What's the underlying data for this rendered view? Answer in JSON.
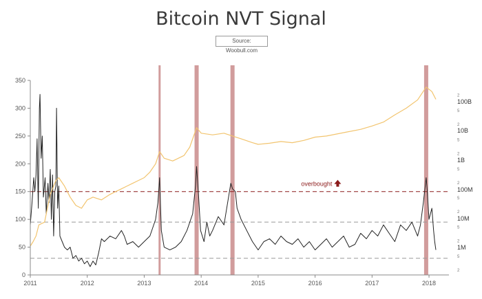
{
  "header": {
    "title": "Bitcoin NVT Signal",
    "source": "Source: Woobull.com"
  },
  "chart_data": {
    "type": "line",
    "title": "Bitcoin NVT Signal",
    "xlabel": "",
    "ylabel": "",
    "xlim": [
      2011.0,
      2018.35
    ],
    "ylim": [
      0,
      350
    ],
    "x_ticks": [
      "2011",
      "2012",
      "2013",
      "2014",
      "2015",
      "2016",
      "2017",
      "2018"
    ],
    "y_ticks": [
      0,
      50,
      100,
      150,
      200,
      250,
      300,
      350
    ],
    "right_axis": {
      "scale": "log",
      "major_labels": [
        "1M",
        "10M",
        "100M",
        "1B",
        "10B",
        "100B"
      ],
      "minor_labels": [
        "2",
        "5"
      ]
    },
    "grid": false,
    "reference_lines": [
      {
        "y": 150,
        "color": "#8b1a1a",
        "label": "overbought"
      },
      {
        "y": 95,
        "color": "#999999"
      },
      {
        "y": 30,
        "color": "#999999"
      }
    ],
    "annotations": [
      {
        "text": "overbought",
        "x": 2016.3,
        "y": 160,
        "marker": "up-arrow"
      }
    ],
    "highlight_bands": [
      {
        "x": 2013.27
      },
      {
        "x": 2013.92
      },
      {
        "x": 2014.55
      },
      {
        "x": 2017.95
      }
    ],
    "series": [
      {
        "name": "",
        "color": "#222222",
        "points": [
          [
            2011.0,
            90
          ],
          [
            2011.03,
            130
          ],
          [
            2011.06,
            175
          ],
          [
            2011.08,
            150
          ],
          [
            2011.1,
            180
          ],
          [
            2011.12,
            245
          ],
          [
            2011.14,
            120
          ],
          [
            2011.16,
            300
          ],
          [
            2011.17,
            325
          ],
          [
            2011.19,
            210
          ],
          [
            2011.21,
            250
          ],
          [
            2011.23,
            140
          ],
          [
            2011.26,
            175
          ],
          [
            2011.28,
            110
          ],
          [
            2011.31,
            165
          ],
          [
            2011.33,
            130
          ],
          [
            2011.35,
            190
          ],
          [
            2011.37,
            100
          ],
          [
            2011.39,
            180
          ],
          [
            2011.41,
            70
          ],
          [
            2011.43,
            150
          ],
          [
            2011.45,
            160
          ],
          [
            2011.46,
            300
          ],
          [
            2011.48,
            120
          ],
          [
            2011.5,
            160
          ],
          [
            2011.52,
            70
          ],
          [
            2011.56,
            60
          ],
          [
            2011.6,
            50
          ],
          [
            2011.65,
            45
          ],
          [
            2011.7,
            50
          ],
          [
            2011.75,
            30
          ],
          [
            2011.8,
            35
          ],
          [
            2011.85,
            25
          ],
          [
            2011.9,
            30
          ],
          [
            2011.95,
            20
          ],
          [
            2012.0,
            25
          ],
          [
            2012.05,
            15
          ],
          [
            2012.1,
            25
          ],
          [
            2012.15,
            18
          ],
          [
            2012.2,
            40
          ],
          [
            2012.25,
            65
          ],
          [
            2012.3,
            60
          ],
          [
            2012.4,
            70
          ],
          [
            2012.5,
            65
          ],
          [
            2012.6,
            80
          ],
          [
            2012.65,
            70
          ],
          [
            2012.7,
            55
          ],
          [
            2012.8,
            60
          ],
          [
            2012.9,
            50
          ],
          [
            2013.0,
            60
          ],
          [
            2013.1,
            70
          ],
          [
            2013.2,
            100
          ],
          [
            2013.24,
            130
          ],
          [
            2013.27,
            175
          ],
          [
            2013.3,
            80
          ],
          [
            2013.35,
            50
          ],
          [
            2013.45,
            45
          ],
          [
            2013.55,
            50
          ],
          [
            2013.65,
            60
          ],
          [
            2013.75,
            80
          ],
          [
            2013.85,
            110
          ],
          [
            2013.9,
            160
          ],
          [
            2013.92,
            195
          ],
          [
            2013.95,
            150
          ],
          [
            2013.99,
            80
          ],
          [
            2014.05,
            60
          ],
          [
            2014.1,
            95
          ],
          [
            2014.15,
            70
          ],
          [
            2014.2,
            80
          ],
          [
            2014.3,
            105
          ],
          [
            2014.4,
            90
          ],
          [
            2014.48,
            140
          ],
          [
            2014.52,
            165
          ],
          [
            2014.55,
            155
          ],
          [
            2014.6,
            150
          ],
          [
            2014.63,
            120
          ],
          [
            2014.7,
            100
          ],
          [
            2014.8,
            80
          ],
          [
            2014.9,
            60
          ],
          [
            2015.0,
            45
          ],
          [
            2015.1,
            60
          ],
          [
            2015.2,
            65
          ],
          [
            2015.3,
            55
          ],
          [
            2015.4,
            70
          ],
          [
            2015.5,
            60
          ],
          [
            2015.6,
            55
          ],
          [
            2015.7,
            65
          ],
          [
            2015.8,
            50
          ],
          [
            2015.9,
            60
          ],
          [
            2016.0,
            45
          ],
          [
            2016.1,
            55
          ],
          [
            2016.2,
            65
          ],
          [
            2016.3,
            50
          ],
          [
            2016.4,
            60
          ],
          [
            2016.5,
            70
          ],
          [
            2016.6,
            50
          ],
          [
            2016.7,
            55
          ],
          [
            2016.8,
            75
          ],
          [
            2016.9,
            65
          ],
          [
            2017.0,
            80
          ],
          [
            2017.1,
            70
          ],
          [
            2017.2,
            90
          ],
          [
            2017.3,
            75
          ],
          [
            2017.4,
            60
          ],
          [
            2017.5,
            90
          ],
          [
            2017.6,
            80
          ],
          [
            2017.7,
            95
          ],
          [
            2017.8,
            70
          ],
          [
            2017.85,
            90
          ],
          [
            2017.9,
            130
          ],
          [
            2017.95,
            175
          ],
          [
            2017.97,
            150
          ],
          [
            2018.0,
            100
          ],
          [
            2018.05,
            120
          ],
          [
            2018.08,
            80
          ],
          [
            2018.1,
            60
          ],
          [
            2018.12,
            45
          ]
        ]
      },
      {
        "name": "",
        "color": "#f2c46e",
        "axis": "right",
        "points": [
          [
            2011.0,
            52
          ],
          [
            2011.05,
            60
          ],
          [
            2011.1,
            70
          ],
          [
            2011.15,
            90
          ],
          [
            2011.25,
            95
          ],
          [
            2011.35,
            145
          ],
          [
            2011.45,
            170
          ],
          [
            2011.5,
            175
          ],
          [
            2011.6,
            160
          ],
          [
            2011.7,
            140
          ],
          [
            2011.8,
            125
          ],
          [
            2011.9,
            120
          ],
          [
            2012.0,
            135
          ],
          [
            2012.1,
            140
          ],
          [
            2012.25,
            135
          ],
          [
            2012.4,
            145
          ],
          [
            2012.5,
            150
          ],
          [
            2012.6,
            155
          ],
          [
            2012.7,
            160
          ],
          [
            2012.8,
            165
          ],
          [
            2012.9,
            170
          ],
          [
            2013.0,
            175
          ],
          [
            2013.1,
            185
          ],
          [
            2013.2,
            200
          ],
          [
            2013.27,
            222
          ],
          [
            2013.35,
            210
          ],
          [
            2013.5,
            205
          ],
          [
            2013.6,
            210
          ],
          [
            2013.7,
            215
          ],
          [
            2013.8,
            230
          ],
          [
            2013.92,
            265
          ],
          [
            2014.0,
            255
          ],
          [
            2014.2,
            252
          ],
          [
            2014.4,
            255
          ],
          [
            2014.55,
            250
          ],
          [
            2014.7,
            245
          ],
          [
            2014.9,
            238
          ],
          [
            2015.0,
            235
          ],
          [
            2015.2,
            237
          ],
          [
            2015.4,
            240
          ],
          [
            2015.6,
            238
          ],
          [
            2015.8,
            242
          ],
          [
            2016.0,
            248
          ],
          [
            2016.2,
            250
          ],
          [
            2016.4,
            254
          ],
          [
            2016.6,
            258
          ],
          [
            2016.8,
            262
          ],
          [
            2017.0,
            268
          ],
          [
            2017.2,
            275
          ],
          [
            2017.4,
            288
          ],
          [
            2017.6,
            300
          ],
          [
            2017.8,
            315
          ],
          [
            2017.95,
            338
          ],
          [
            2018.05,
            330
          ],
          [
            2018.12,
            316
          ]
        ]
      }
    ]
  }
}
